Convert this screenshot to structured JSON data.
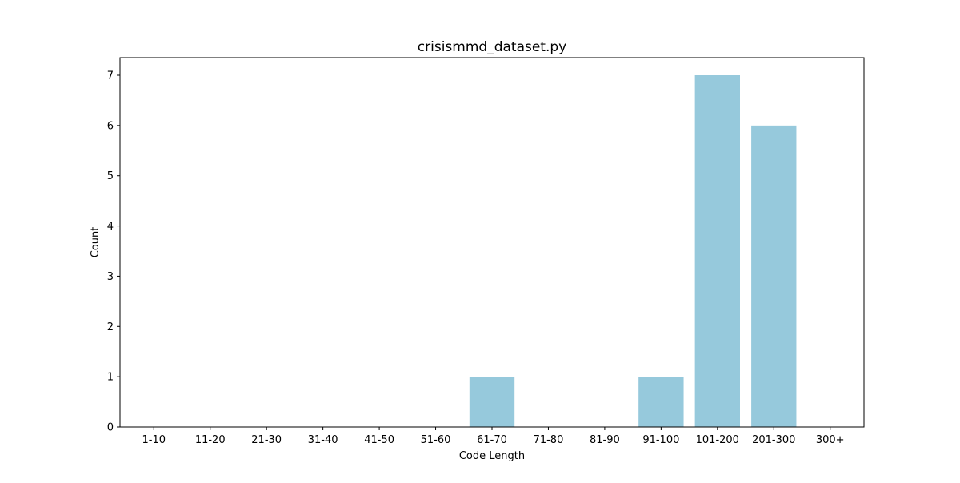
{
  "chart_data": {
    "type": "bar",
    "title": "crisismmd_dataset.py",
    "xlabel": "Code Length",
    "ylabel": "Count",
    "categories": [
      "1-10",
      "11-20",
      "21-30",
      "31-40",
      "41-50",
      "51-60",
      "61-70",
      "71-80",
      "81-90",
      "91-100",
      "101-200",
      "201-300",
      "300+"
    ],
    "values": [
      0,
      0,
      0,
      0,
      0,
      0,
      1,
      0,
      0,
      1,
      7,
      6,
      0
    ],
    "ylim": [
      0,
      7.35
    ],
    "yticks": [
      0,
      1,
      2,
      3,
      4,
      5,
      6,
      7
    ],
    "bar_color": "#96c9dc",
    "grid": false,
    "legend": "none"
  }
}
